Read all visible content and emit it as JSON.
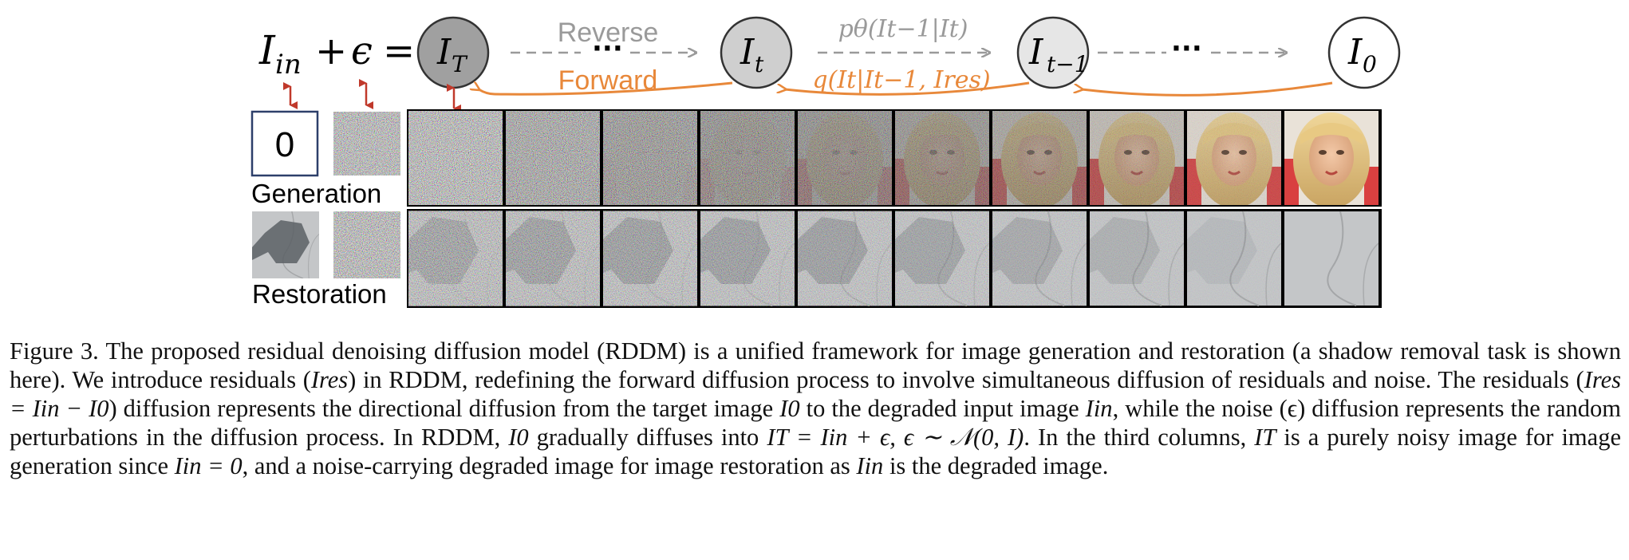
{
  "diagram": {
    "equation": {
      "lhs": "I",
      "lhs_sub": "in",
      "plus": "+",
      "eps": "ϵ",
      "eq": "="
    },
    "nodes": [
      {
        "id": "I_T",
        "base": "I",
        "sub": "T",
        "fill": "#a0a0a0"
      },
      {
        "id": "I_t",
        "base": "I",
        "sub": "t",
        "fill": "#cfcfcf"
      },
      {
        "id": "I_t-1",
        "base": "I",
        "sub": "t−1",
        "fill": "#e6e6e6"
      },
      {
        "id": "I_0",
        "base": "I",
        "sub": "0",
        "fill": "#ffffff"
      }
    ],
    "ellipsis": "···",
    "reverse_label": "Reverse",
    "forward_label": "Forward",
    "reverse_formula": "pθ(It−1|It)",
    "forward_formula": "q(It|It−1, Ires)",
    "row_labels": {
      "generation": "Generation",
      "restoration": "Restoration"
    },
    "zero_box": "0",
    "colors": {
      "forward": "#e8883a",
      "reverse": "#9a9a9a",
      "updown_arrow": "#c0392b"
    },
    "denoise_levels": [
      0,
      0.08,
      0.17,
      0.27,
      0.38,
      0.5,
      0.62,
      0.74,
      0.86,
      1.0
    ]
  },
  "caption": {
    "figure_label": "Figure 3.",
    "s1": "The proposed residual denoising diffusion model (RDDM) is a unified framework for image generation and restoration (a shadow removal task is shown here). We introduce residuals (",
    "s2": ") in RDDM, redefining the forward diffusion process to involve simultaneous diffusion of residuals and noise. The residuals (",
    "s3": ") diffusion represents the directional diffusion from the target image ",
    "s4": " to the degraded input image ",
    "s5": ", while the noise (ϵ) diffusion represents the random perturbations in the diffusion process. In RDDM, ",
    "s6": " gradually diffuses into ",
    "s7": ". In the third columns, ",
    "s8": " is a purely noisy image for image generation since ",
    "s9": ", and a noise-carrying degraded image for image restoration as ",
    "s10": " is the degraded image.",
    "m_ires": "Ires",
    "m_ires_eq": "Ires = Iin − I0",
    "m_i0": "I0",
    "m_iin": "Iin",
    "m_it_eq": "IT = Iin + ϵ, ϵ ∼ 𝒩(0, I)",
    "m_it": "IT",
    "m_iin0": "Iin = 0"
  }
}
